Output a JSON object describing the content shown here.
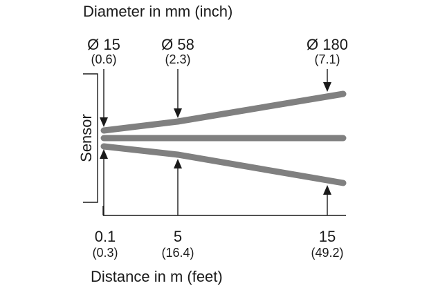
{
  "title": "Diameter in mm (inch)",
  "sensor_label": "Sensor",
  "x_axis_label": "Distance in m (feet)",
  "diameters": [
    {
      "mm": "Ø 15",
      "inch": "(0.6)"
    },
    {
      "mm": "Ø 58",
      "inch": "(2.3)"
    },
    {
      "mm": "Ø 180",
      "inch": "(7.1)"
    }
  ],
  "distances": [
    {
      "m": "0.1",
      "feet": "(0.3)"
    },
    {
      "m": "5",
      "feet": "(16.4)"
    },
    {
      "m": "15",
      "feet": "(49.2)"
    }
  ],
  "colors": {
    "beam": "#808080",
    "lines": "#1a1a1a"
  }
}
